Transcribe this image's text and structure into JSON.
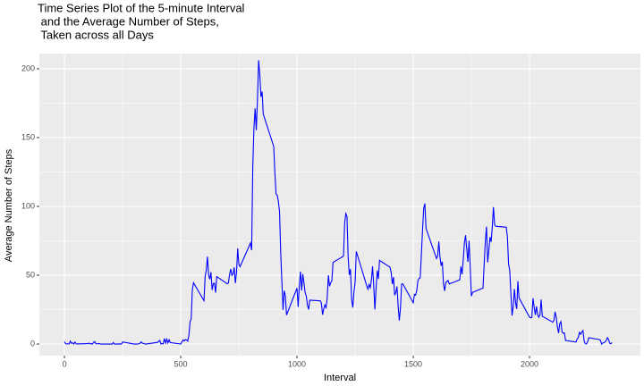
{
  "chart_data": {
    "type": "line",
    "title": [
      "Time Series Plot of the 5-minute Interval",
      " and the Average Number of Steps,",
      " Taken across all Days"
    ],
    "x_label": "Interval",
    "y_label": "Average Number of Steps",
    "x": [
      0,
      5,
      10,
      15,
      20,
      25,
      30,
      35,
      40,
      45,
      50,
      55,
      100,
      105,
      110,
      115,
      120,
      125,
      130,
      135,
      140,
      145,
      150,
      155,
      200,
      205,
      210,
      215,
      220,
      225,
      230,
      235,
      240,
      245,
      250,
      300,
      310,
      320,
      325,
      330,
      335,
      340,
      345,
      350,
      400,
      410,
      415,
      420,
      425,
      430,
      435,
      440,
      445,
      450,
      455,
      500,
      505,
      510,
      515,
      520,
      525,
      530,
      535,
      540,
      545,
      550,
      555,
      600,
      605,
      610,
      615,
      620,
      625,
      630,
      635,
      640,
      645,
      650,
      655,
      700,
      705,
      710,
      715,
      720,
      725,
      730,
      735,
      740,
      745,
      750,
      755,
      800,
      805,
      810,
      815,
      820,
      825,
      830,
      835,
      840,
      845,
      850,
      855,
      900,
      905,
      910,
      915,
      920,
      925,
      930,
      935,
      940,
      945,
      950,
      955,
      1000,
      1005,
      1010,
      1015,
      1020,
      1025,
      1030,
      1035,
      1040,
      1045,
      1050,
      1055,
      1100,
      1105,
      1110,
      1115,
      1120,
      1125,
      1130,
      1135,
      1140,
      1145,
      1150,
      1155,
      1200,
      1205,
      1210,
      1215,
      1220,
      1225,
      1230,
      1235,
      1240,
      1245,
      1250,
      1255,
      1300,
      1305,
      1310,
      1315,
      1320,
      1325,
      1330,
      1335,
      1340,
      1345,
      1350,
      1355,
      1400,
      1405,
      1410,
      1415,
      1420,
      1425,
      1430,
      1435,
      1440,
      1445,
      1450,
      1455,
      1500,
      1505,
      1510,
      1515,
      1520,
      1525,
      1530,
      1535,
      1540,
      1545,
      1550,
      1555,
      1600,
      1605,
      1610,
      1615,
      1620,
      1625,
      1630,
      1635,
      1640,
      1645,
      1650,
      1655,
      1700,
      1705,
      1710,
      1715,
      1720,
      1725,
      1730,
      1735,
      1740,
      1745,
      1750,
      1755,
      1800,
      1805,
      1810,
      1815,
      1820,
      1825,
      1830,
      1835,
      1840,
      1845,
      1850,
      1855,
      1900,
      1905,
      1910,
      1915,
      1920,
      1925,
      1930,
      1935,
      1940,
      1945,
      1950,
      1955,
      2000,
      2005,
      2010,
      2015,
      2020,
      2025,
      2030,
      2035,
      2040,
      2045,
      2050,
      2055,
      2100,
      2105,
      2110,
      2115,
      2120,
      2125,
      2130,
      2135,
      2140,
      2145,
      2150,
      2155,
      2200,
      2205,
      2210,
      2215,
      2220,
      2225,
      2230,
      2235,
      2240,
      2245,
      2250,
      2255,
      2300,
      2305,
      2310,
      2315,
      2320,
      2325,
      2330,
      2335,
      2340,
      2345,
      2350,
      2355
    ],
    "series": [
      {
        "name": "steps",
        "color": "#0000ff",
        "values": [
          1.7,
          0.3,
          0.1,
          0.2,
          0.1,
          2.1,
          0.5,
          0.9,
          0,
          1.5,
          0.3,
          0.1,
          0.3,
          0.7,
          0.2,
          0.3,
          0,
          1.1,
          1.8,
          0.2,
          0.2,
          0.3,
          0.3,
          0,
          0,
          0,
          1.1,
          0,
          0,
          0.1,
          0,
          0.2,
          0,
          0,
          1.5,
          0,
          0,
          0.2,
          0.6,
          1.6,
          0.6,
          0.5,
          0.1,
          0,
          1.2,
          2.6,
          0,
          0.3,
          0.3,
          4.1,
          0.7,
          3.5,
          0.8,
          3.1,
          1.1,
          0,
          1.6,
          3,
          2.2,
          3.3,
          3,
          2.1,
          6.1,
          16,
          18.3,
          39.5,
          44.5,
          31.5,
          49.3,
          53.8,
          63.5,
          50,
          47.1,
          52.2,
          39.3,
          44,
          44.2,
          37.4,
          49,
          43.8,
          44.4,
          50.5,
          54.5,
          49.9,
          51,
          55.7,
          44.3,
          52.3,
          69.5,
          57.8,
          56.2,
          73.4,
          68.2,
          129.4,
          157.5,
          171.2,
          155.4,
          177.3,
          206.2,
          195.9,
          179.6,
          183.4,
          167,
          143.5,
          124,
          109.1,
          108.1,
          103.7,
          96,
          66.2,
          45.2,
          24.8,
          38.8,
          35,
          21.1,
          40.6,
          27,
          42.4,
          52.7,
          38.9,
          50.8,
          44.3,
          37.4,
          34.7,
          28.3,
          25.1,
          31.9,
          31.4,
          29.7,
          21.3,
          25.5,
          28.4,
          26.5,
          33.4,
          50,
          42,
          44.6,
          46,
          59.3,
          63.9,
          87.7,
          94.8,
          92.8,
          63.4,
          50.2,
          54.5,
          32.4,
          26.5,
          37.7,
          45.1,
          67.3,
          42.3,
          39.9,
          43.3,
          41,
          46.2,
          56.4,
          42.8,
          25.1,
          40,
          53.5,
          47.3,
          60.8,
          55.8,
          52,
          43.6,
          48.7,
          35.5,
          37.5,
          41.8,
          27.5,
          17.1,
          26.1,
          43.6,
          43.8,
          30,
          36.1,
          35.5,
          38.8,
          46,
          47.8,
          48.1,
          65.3,
          82.9,
          98.7,
          102.1,
          84,
          62.1,
          64.1,
          74.5,
          63.2,
          56.9,
          59.8,
          43.9,
          38.6,
          44.7,
          45.5,
          46.2,
          43.7,
          46.6,
          56.3,
          50.7,
          61.2,
          73.4,
          79.1,
          68.9,
          59.7,
          75.1,
          56.5,
          34.8,
          37.5,
          40.7,
          58,
          74.7,
          85.3,
          59.3,
          67.8,
          77.7,
          74.2,
          85.3,
          99.5,
          86.6,
          85.6,
          84.9,
          77.8,
          58,
          53.4,
          36.3,
          20.7,
          27.4,
          40,
          30.2,
          25.5,
          45.7,
          33.5,
          19.6,
          19,
          19.3,
          33.3,
          26.8,
          21.2,
          27.3,
          21.3,
          19.5,
          21.3,
          32.3,
          20.2,
          15.9,
          17.2,
          23.5,
          19.2,
          12.5,
          8,
          14.7,
          16.3,
          8.7,
          7.8,
          8.1,
          2.6,
          1.5,
          3.7,
          4.8,
          8.5,
          7.1,
          8.7,
          9.8,
          2.2,
          0.3,
          0.1,
          1.6,
          4.6,
          3.3,
          2.8,
          0,
          0.8,
          1,
          1.6,
          2.6,
          4.7,
          3.3,
          0.6,
          0.2,
          1.1
        ]
      }
    ],
    "xlim": [
      -108,
      2477
    ],
    "ylim": [
      -8.4,
      211
    ],
    "xticks": [
      0,
      500,
      1000,
      1500,
      2000
    ],
    "yticks": [
      0,
      50,
      100,
      150,
      200
    ],
    "grid": true,
    "minor_grid": true,
    "panel_color": "#ebebeb"
  }
}
